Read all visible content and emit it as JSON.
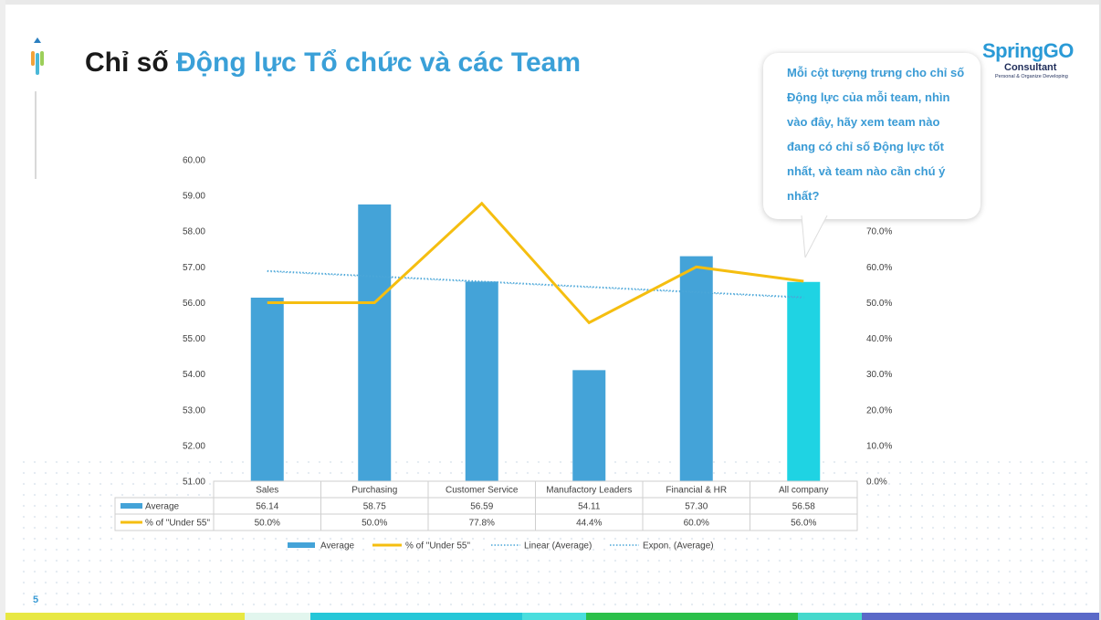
{
  "title": {
    "part1": "Chỉ số ",
    "part2": "Động lực Tổ chức và các Team"
  },
  "slide_number": "5",
  "logo": {
    "line1": "SpringGO",
    "line2": "Consultant",
    "line3": "Personal & Organize Developing"
  },
  "callout": "Mỗi cột tượng trưng cho chỉ số Động lực của mỗi team, nhìn vào đây, hãy xem team nào đang có chỉ số Động lực tốt nhất, và team nào cần chú ý nhất?",
  "colors": {
    "bar": "#44a3d8",
    "bar_highlight": "#1fd3e3",
    "line": "#f5be10",
    "trend": "#4aa6d8",
    "title_accent": "#3aa0d8",
    "bottom_bar": [
      "#e8e843",
      "#e2f6ee",
      "#25c7d8",
      "#4adede",
      "#2bc04a",
      "#45d9cc",
      "#5a69c8"
    ]
  },
  "chart_data": {
    "type": "bar",
    "categories": [
      "Sales",
      "Purchasing",
      "Customer Service",
      "Manufactory Leaders",
      "Financial & HR",
      "All company"
    ],
    "series": [
      {
        "name": "Average",
        "type": "bar",
        "axis": "left",
        "values": [
          56.14,
          58.75,
          56.59,
          54.11,
          57.3,
          56.58
        ]
      },
      {
        "name": "% of \"Under 55\"",
        "type": "line",
        "axis": "right",
        "values": [
          50.0,
          50.0,
          77.8,
          44.4,
          60.0,
          56.0
        ]
      },
      {
        "name": "Linear (Average)",
        "type": "trendline",
        "axis": "left",
        "values": [
          56.89,
          56.74,
          56.59,
          56.45,
          56.3,
          56.15
        ]
      },
      {
        "name": "Expon. (Average)",
        "type": "trendline",
        "axis": "left",
        "values": [
          56.89,
          56.74,
          56.59,
          56.45,
          56.3,
          56.15
        ]
      }
    ],
    "table": {
      "rows": [
        {
          "label": "Average",
          "cells": [
            "56.14",
            "58.75",
            "56.59",
            "54.11",
            "57.30",
            "56.58"
          ]
        },
        {
          "label": "% of \"Under 55\"",
          "cells": [
            "50.0%",
            "50.0%",
            "77.8%",
            "44.4%",
            "60.0%",
            "56.0%"
          ]
        }
      ]
    },
    "y_left": {
      "min": 51,
      "max": 60,
      "ticks": [
        "51.00",
        "52.00",
        "53.00",
        "54.00",
        "55.00",
        "56.00",
        "57.00",
        "58.00",
        "59.00",
        "60.00"
      ]
    },
    "y_right": {
      "min": 0,
      "max": 90,
      "ticks": [
        "0.0%",
        "10.0%",
        "20.0%",
        "30.0%",
        "40.0%",
        "50.0%",
        "60.0%",
        "70.0%"
      ]
    },
    "legend": [
      "Average",
      "% of \"Under 55\"",
      "Linear (Average)",
      "Expon. (Average)"
    ],
    "legend_position": "bottom",
    "grid": false
  }
}
